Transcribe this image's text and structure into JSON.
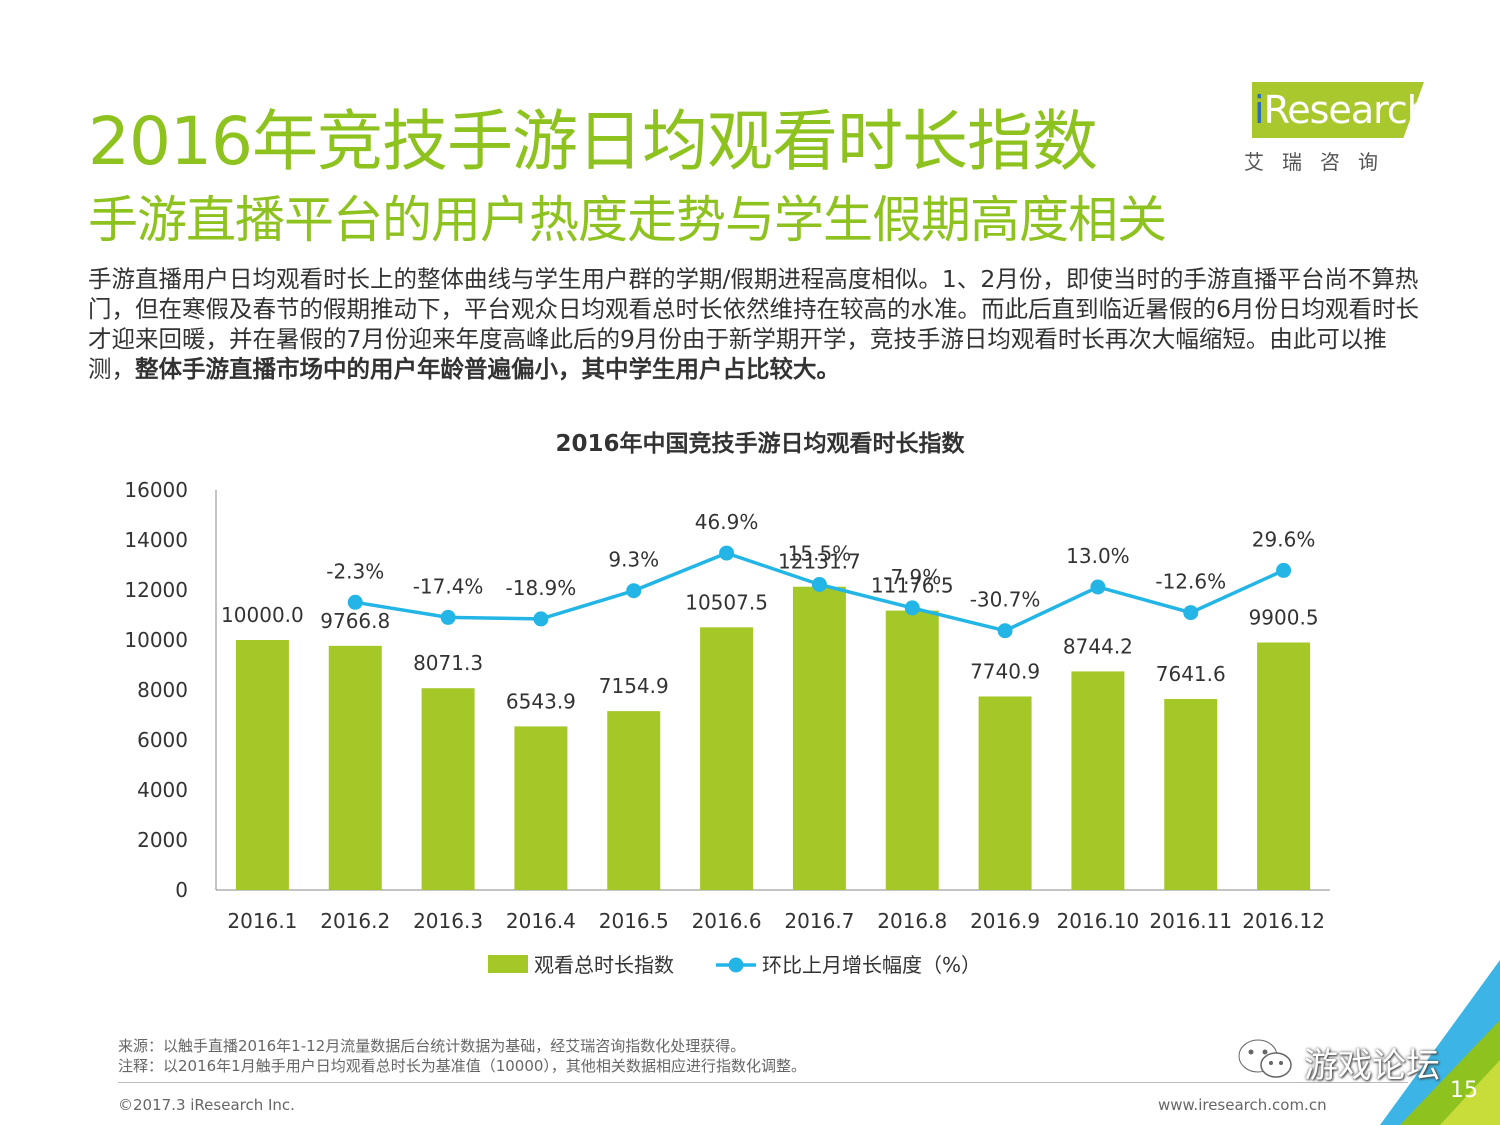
{
  "header": {
    "title": "2016年竞技手游日均观看时长指数",
    "subtitle": "手游直播平台的用户热度走势与学生假期高度相关"
  },
  "logo": {
    "i": "i",
    "brand": "Research",
    "cn": "艾瑞咨询"
  },
  "description": {
    "normal": "手游直播用户日均观看时长上的整体曲线与学生用户群的学期/假期进程高度相似。1、2月份，即使当时的手游直播平台尚不算热门，但在寒假及春节的假期推动下，平台观众日均观看总时长依然维持在较高的水准。而此后直到临近暑假的6月份日均观看时长才迎来回暖，并在暑假的7月份迎来年度高峰此后的9月份由于新学期开学，竞技手游日均观看时长再次大幅缩短。由此可以推测，",
    "bold": "整体手游直播市场中的用户年龄普遍偏小，其中学生用户占比较大。"
  },
  "chart_data": {
    "type": "bar",
    "title": "2016年中国竞技手游日均观看时长指数",
    "categories": [
      "2016.1",
      "2016.2",
      "2016.3",
      "2016.4",
      "2016.5",
      "2016.6",
      "2016.7",
      "2016.8",
      "2016.9",
      "2016.10",
      "2016.11",
      "2016.12"
    ],
    "series": [
      {
        "name": "观看总时长指数",
        "kind": "bar",
        "values": [
          10000.0,
          9766.8,
          8071.3,
          6543.9,
          7154.9,
          10507.5,
          12131.7,
          11176.5,
          7740.9,
          8744.2,
          7641.6,
          9900.5
        ],
        "labels": [
          "10000.0",
          "9766.8",
          "8071.3",
          "6543.9",
          "7154.9",
          "10507.5",
          "12131.7",
          "11176.5",
          "7740.9",
          "8744.2",
          "7641.6",
          "9900.5"
        ]
      },
      {
        "name": "环比上月增长幅度（%）",
        "kind": "line",
        "values": [
          null,
          -2.3,
          -17.4,
          -18.9,
          9.3,
          46.9,
          15.5,
          -7.9,
          -30.7,
          13.0,
          -12.6,
          29.6
        ],
        "labels": [
          null,
          "-2.3%",
          "-17.4%",
          "-18.9%",
          "9.3%",
          "46.9%",
          "15.5%",
          "-7.9%",
          "-30.7%",
          "13.0%",
          "-12.6%",
          "29.6%"
        ]
      }
    ],
    "yticks": [
      "0",
      "2000",
      "4000",
      "6000",
      "8000",
      "10000",
      "12000",
      "14000",
      "16000"
    ],
    "ylim": [
      0,
      16000
    ],
    "colors": {
      "bar": "#a4c827",
      "line": "#22b5e6",
      "axis": "#888888"
    },
    "legend_position": "bottom"
  },
  "footer": {
    "source": "来源：以触手直播2016年1-12月流量数据后台统计数据为基础，经艾瑞咨询指数化处理获得。",
    "note": "注释：以2016年1月触手用户日均观看总时长为基准值（10000），其他相关数据相应进行指数化调整。",
    "copyright": "©2017.3 iResearch Inc.",
    "website": "www.iresearch.com.cn",
    "page": "15"
  },
  "watermark": {
    "text": "游戏论坛",
    "icon": "wechat-icon"
  }
}
